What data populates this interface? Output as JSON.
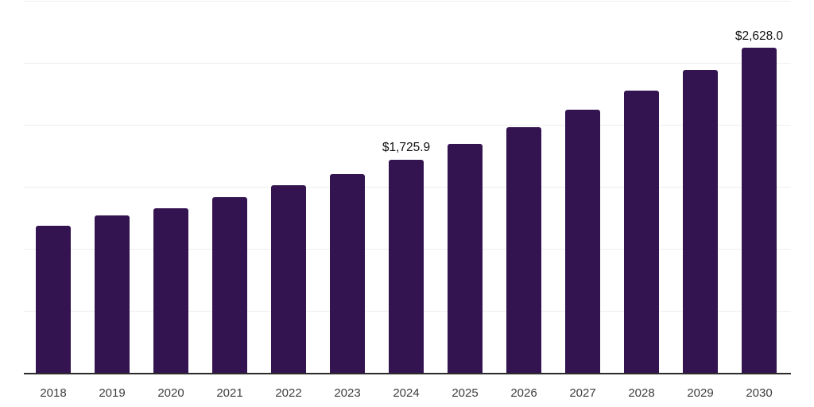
{
  "chart_data": {
    "type": "bar",
    "title": "",
    "xlabel": "",
    "ylabel": "",
    "x": [
      2018,
      2019,
      2020,
      2021,
      2022,
      2023,
      2024,
      2025,
      2026,
      2027,
      2028,
      2029,
      2030
    ],
    "values": [
      1192,
      1273,
      1331,
      1421,
      1519,
      1612,
      1725.9,
      1851.2,
      1985.7,
      2129.9,
      2284.6,
      2450.5,
      2628.0
    ],
    "labeled_points": [
      {
        "x": 2024,
        "label": "$1,725.9"
      },
      {
        "x": 2030,
        "label": "$2,628.0"
      }
    ],
    "ylim": [
      0,
      3000
    ],
    "grid_step": 500,
    "grid": true,
    "legend": "none",
    "bar_color": "#341450",
    "axis_color": "#2b2b2b",
    "gridline_color": "#ededed",
    "value_label_color": "#111111",
    "tick_label_color": "#3d3d3d"
  }
}
